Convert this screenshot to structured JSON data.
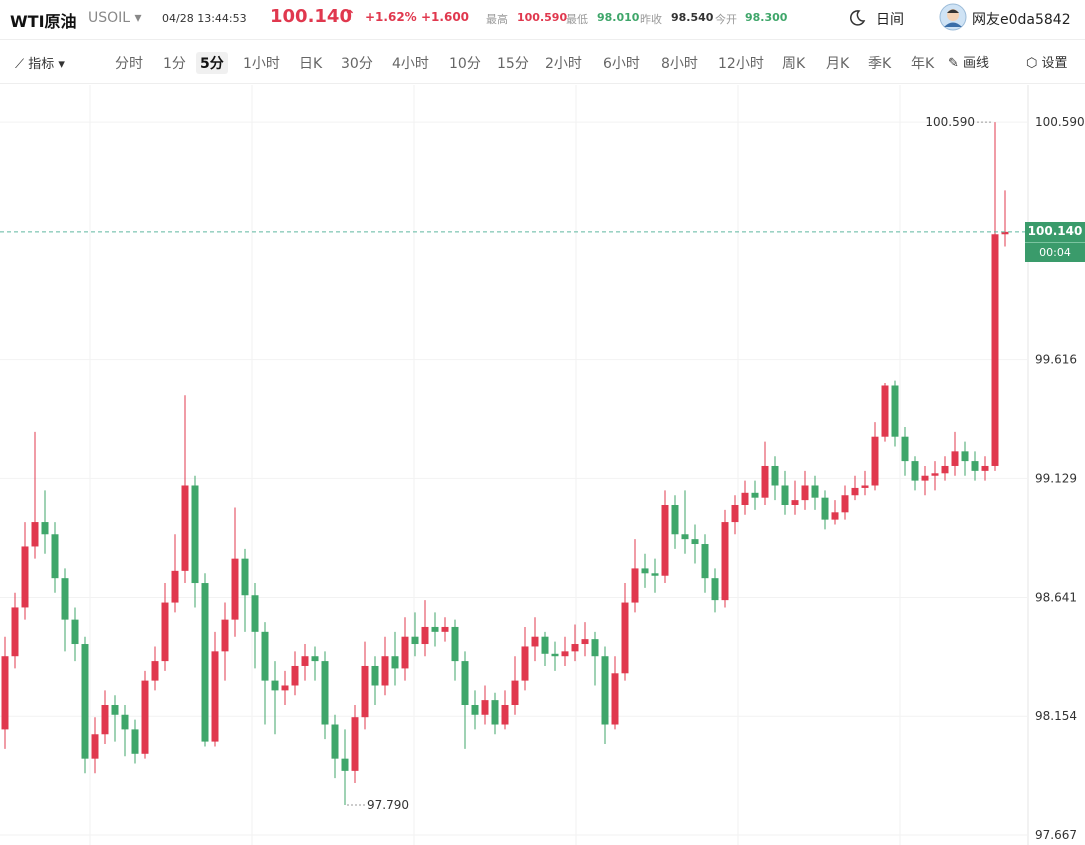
{
  "header": {
    "name": "WTI原油",
    "symbol": "USOIL",
    "datetime": "04/28 13:44:53",
    "price": "100.140",
    "change_pct": "+1.62%",
    "change_abs": "+1.600",
    "stats": [
      {
        "label": "最高",
        "value": "100.590"
      },
      {
        "label": "最低",
        "value": "98.010"
      },
      {
        "label": "昨收",
        "value": "98.540"
      },
      {
        "label": "今开",
        "value": "98.300"
      }
    ],
    "theme": "日间",
    "user": "网友e0da5842"
  },
  "toolbar": {
    "indicator": "指标",
    "intervals": [
      "分时",
      "1分",
      "5分",
      "1小时",
      "日K",
      "30分",
      "4小时",
      "10分",
      "15分",
      "2小时",
      "6小时",
      "8小时",
      "12小时",
      "周K",
      "月K",
      "季K",
      "年K"
    ],
    "active_interval": 2,
    "draw": "画线",
    "settings": "设置"
  },
  "chart_data": {
    "type": "candlestick",
    "up_color": "#e0384e",
    "down_color": "#3fa66a",
    "ylim": [
      97.626,
      100.742
    ],
    "yticks": [
      {
        "value": 100.59,
        "label": "100.590"
      },
      99.616,
      99.129,
      98.641,
      98.154,
      97.667
    ],
    "grid": true,
    "open": [
      98.1,
      98.4,
      98.6,
      98.85,
      98.95,
      98.9,
      98.72,
      98.55,
      98.45,
      97.98,
      98.08,
      98.2,
      98.16,
      98.1,
      98.0,
      98.3,
      98.38,
      98.62,
      98.75,
      99.1,
      98.7,
      98.05,
      98.42,
      98.55,
      98.8,
      98.65,
      98.5,
      98.3,
      98.26,
      98.28,
      98.36,
      98.4,
      98.38,
      98.12,
      97.98,
      97.93,
      98.15,
      98.36,
      98.28,
      98.4,
      98.35,
      98.48,
      98.45,
      98.52,
      98.5,
      98.52,
      98.38,
      98.2,
      98.16,
      98.22,
      98.12,
      98.2,
      98.3,
      98.44,
      98.48,
      98.41,
      98.4,
      98.42,
      98.45,
      98.47,
      98.4,
      98.12,
      98.33,
      98.62,
      98.76,
      98.74,
      98.73,
      99.02,
      98.9,
      98.88,
      98.86,
      98.72,
      98.63,
      98.95,
      99.02,
      99.07,
      99.05,
      99.18,
      99.1,
      99.02,
      99.04,
      99.1,
      99.05,
      98.96,
      98.99,
      99.06,
      99.09,
      99.1,
      99.3,
      99.51,
      99.3,
      99.2,
      99.12,
      99.14,
      99.15,
      99.18,
      99.24,
      99.2,
      99.16,
      99.18,
      100.13
    ],
    "high": [
      98.48,
      98.66,
      98.95,
      99.32,
      99.08,
      98.95,
      98.76,
      98.6,
      98.48,
      98.15,
      98.26,
      98.24,
      98.2,
      98.14,
      98.34,
      98.44,
      98.7,
      98.9,
      99.47,
      99.14,
      98.74,
      98.5,
      98.62,
      99.01,
      98.84,
      98.7,
      98.54,
      98.38,
      98.34,
      98.42,
      98.45,
      98.44,
      98.42,
      98.16,
      98.1,
      98.2,
      98.46,
      98.4,
      98.48,
      98.5,
      98.56,
      98.58,
      98.63,
      98.58,
      98.56,
      98.55,
      98.42,
      98.26,
      98.28,
      98.25,
      98.26,
      98.4,
      98.52,
      98.56,
      98.5,
      98.46,
      98.48,
      98.53,
      98.54,
      98.5,
      98.44,
      98.4,
      98.7,
      98.88,
      98.82,
      98.8,
      99.08,
      99.06,
      99.08,
      98.94,
      98.9,
      98.76,
      99.0,
      99.06,
      99.12,
      99.12,
      99.28,
      99.22,
      99.16,
      99.12,
      99.16,
      99.14,
      99.08,
      99.04,
      99.1,
      99.14,
      99.16,
      99.36,
      99.52,
      99.53,
      99.34,
      99.22,
      99.18,
      99.2,
      99.22,
      99.32,
      99.28,
      99.24,
      99.22,
      100.59,
      100.31
    ],
    "low": [
      98.02,
      98.35,
      98.55,
      98.8,
      98.82,
      98.66,
      98.42,
      98.38,
      97.92,
      97.92,
      98.04,
      98.05,
      97.99,
      97.96,
      97.98,
      98.26,
      98.34,
      98.58,
      98.7,
      98.6,
      98.03,
      98.03,
      98.3,
      98.48,
      98.5,
      98.35,
      98.12,
      98.08,
      98.2,
      98.24,
      98.3,
      98.3,
      98.06,
      97.9,
      97.79,
      97.88,
      98.1,
      98.2,
      98.24,
      98.28,
      98.3,
      98.4,
      98.4,
      98.44,
      98.46,
      98.3,
      98.02,
      98.1,
      98.12,
      98.08,
      98.1,
      98.16,
      98.26,
      98.38,
      98.36,
      98.34,
      98.36,
      98.38,
      98.4,
      98.28,
      98.04,
      98.1,
      98.3,
      98.58,
      98.68,
      98.66,
      98.7,
      98.84,
      98.82,
      98.78,
      98.66,
      98.58,
      98.6,
      98.9,
      98.98,
      99.0,
      99.02,
      99.04,
      98.98,
      98.98,
      99.0,
      99.0,
      98.92,
      98.94,
      98.96,
      99.04,
      99.06,
      99.08,
      99.28,
      99.26,
      99.14,
      99.08,
      99.06,
      99.08,
      99.12,
      99.14,
      99.14,
      99.12,
      99.12,
      99.16,
      100.08
    ],
    "close": [
      98.4,
      98.6,
      98.85,
      98.95,
      98.9,
      98.72,
      98.55,
      98.45,
      97.98,
      98.08,
      98.2,
      98.16,
      98.1,
      98.0,
      98.3,
      98.38,
      98.62,
      98.75,
      99.1,
      98.7,
      98.05,
      98.42,
      98.55,
      98.8,
      98.65,
      98.5,
      98.3,
      98.26,
      98.28,
      98.36,
      98.4,
      98.38,
      98.12,
      97.98,
      97.93,
      98.15,
      98.36,
      98.28,
      98.4,
      98.35,
      98.48,
      98.45,
      98.52,
      98.5,
      98.52,
      98.38,
      98.2,
      98.16,
      98.22,
      98.12,
      98.2,
      98.3,
      98.44,
      98.48,
      98.41,
      98.4,
      98.42,
      98.45,
      98.47,
      98.4,
      98.12,
      98.33,
      98.62,
      98.76,
      98.74,
      98.73,
      99.02,
      98.9,
      98.88,
      98.86,
      98.72,
      98.63,
      98.95,
      99.02,
      99.07,
      99.05,
      99.18,
      99.1,
      99.02,
      99.04,
      99.1,
      99.05,
      98.96,
      98.99,
      99.06,
      99.09,
      99.1,
      99.3,
      99.51,
      99.3,
      99.2,
      99.12,
      99.14,
      99.15,
      99.18,
      99.24,
      99.2,
      99.16,
      99.18,
      100.13,
      100.14
    ],
    "max_label": {
      "value": 100.59,
      "label": "100.590"
    },
    "min_label": {
      "value": 97.79,
      "label": "97.790"
    },
    "last_price": {
      "value": 100.14,
      "label": "100.140"
    },
    "countdown": "00:04"
  }
}
